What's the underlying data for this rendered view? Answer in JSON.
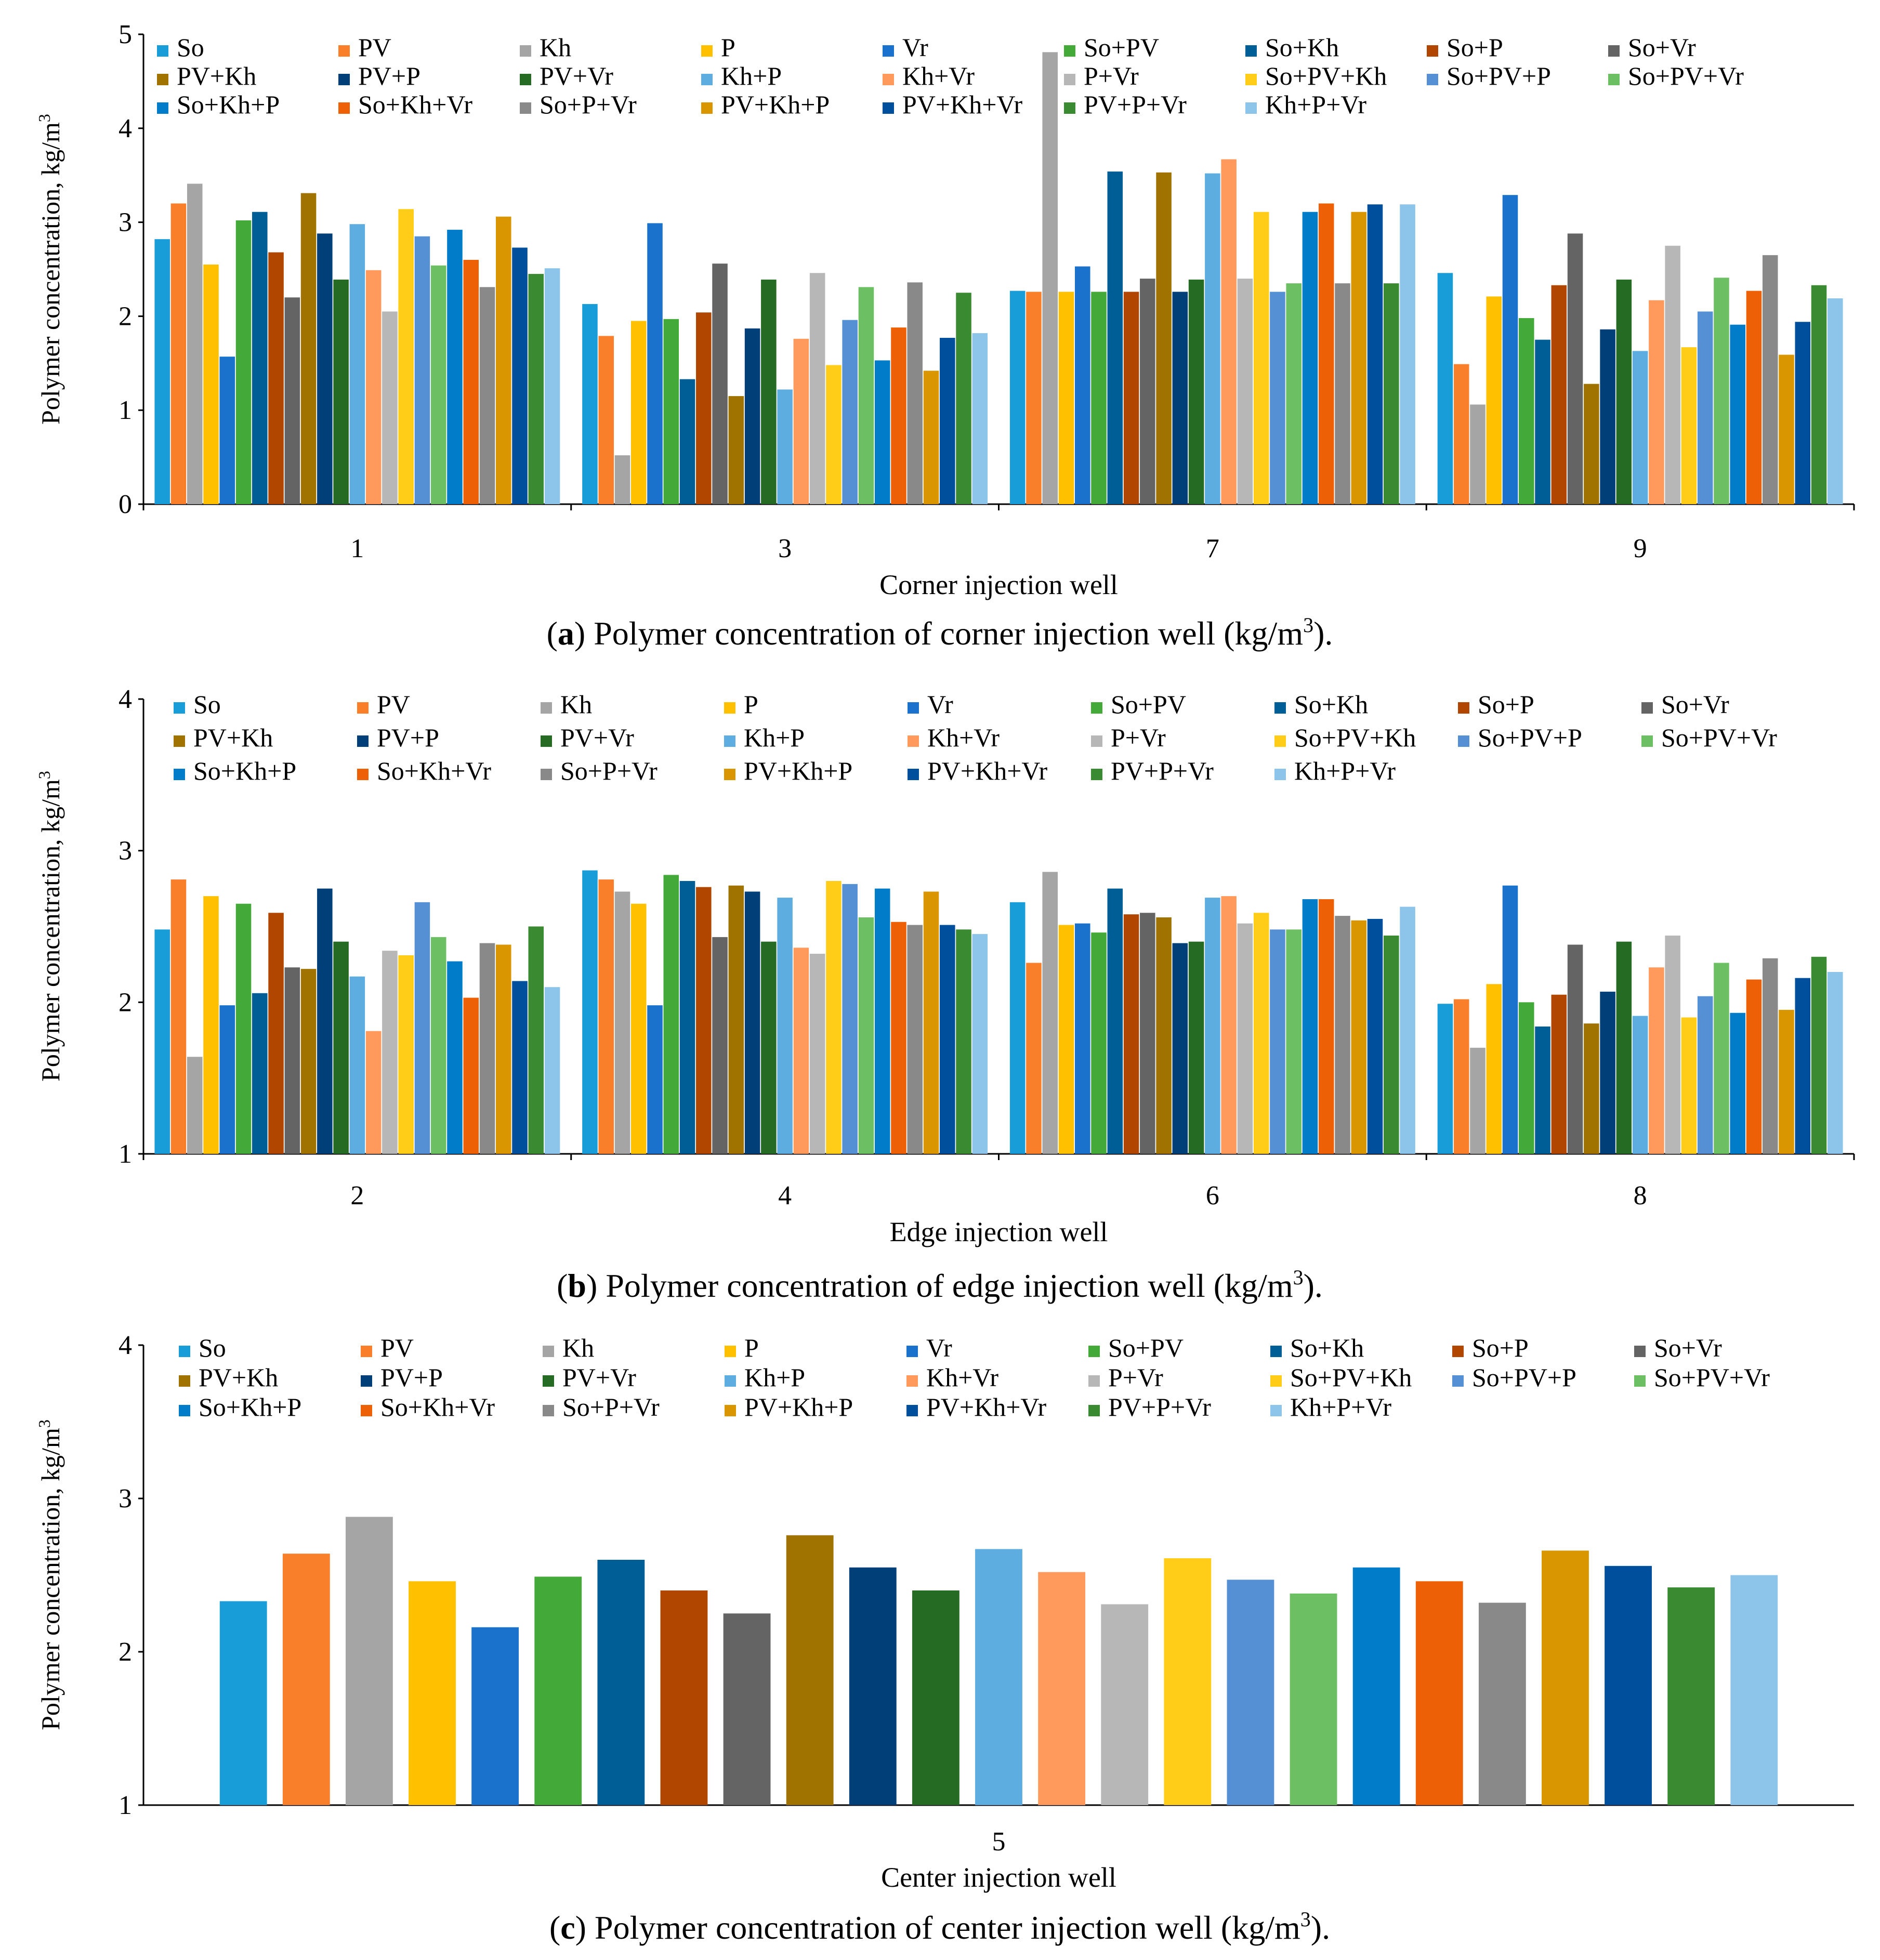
{
  "series_names": [
    "So",
    "PV",
    "Kh",
    "P",
    "Vr",
    "So+PV",
    "So+Kh",
    "So+P",
    "So+Vr",
    "PV+Kh",
    "PV+P",
    "PV+Vr",
    "Kh+P",
    "Kh+Vr",
    "P+Vr",
    "So+PV+Kh",
    "So+PV+P",
    "So+PV+Vr",
    "So+Kh+P",
    "So+Kh+Vr",
    "So+P+Vr",
    "PV+Kh+P",
    "PV+Kh+Vr",
    "PV+P+Vr",
    "Kh+P+Vr"
  ],
  "colors": [
    "#199DD8",
    "#F97F2A",
    "#A5A5A5",
    "#FFC000",
    "#1A72CC",
    "#43A939",
    "#005E96",
    "#B14600",
    "#646464",
    "#A07300",
    "#003F78",
    "#256B23",
    "#5DADE0",
    "#FF9A5C",
    "#B7B7B7",
    "#FFCD17",
    "#5590D4",
    "#6CC063",
    "#007CC9",
    "#EE6005",
    "#898989",
    "#D99600",
    "#004F9D",
    "#3A8A32",
    "#8DC4EA"
  ],
  "chart_data": [
    {
      "type": "bar",
      "title": "(a) Polymer concentration of corner injection well (kg/m3).",
      "caption_letter": "a",
      "caption_text": " Polymer concentration of corner injection well (kg/m",
      "caption_unit_tail": ").",
      "xlabel": "Corner injection well",
      "ylabel": "Polymer concentration, kg/m",
      "ylim": [
        0,
        5
      ],
      "yticks": [
        "0",
        "1",
        "2",
        "3",
        "4",
        "5"
      ],
      "legend": "top",
      "categories": [
        "1",
        "3",
        "7",
        "9"
      ],
      "series": [
        {
          "name": "So",
          "values": [
            2.82,
            2.13,
            2.27,
            2.46
          ]
        },
        {
          "name": "PV",
          "values": [
            3.2,
            1.79,
            2.26,
            1.49
          ]
        },
        {
          "name": "Kh",
          "values": [
            3.41,
            0.52,
            4.81,
            1.06
          ]
        },
        {
          "name": "P",
          "values": [
            2.55,
            1.95,
            2.26,
            2.21
          ]
        },
        {
          "name": "Vr",
          "values": [
            1.57,
            2.99,
            2.53,
            3.29
          ]
        },
        {
          "name": "So+PV",
          "values": [
            3.02,
            1.97,
            2.26,
            1.98
          ]
        },
        {
          "name": "So+Kh",
          "values": [
            3.11,
            1.33,
            3.54,
            1.75
          ]
        },
        {
          "name": "So+P",
          "values": [
            2.68,
            2.04,
            2.26,
            2.33
          ]
        },
        {
          "name": "So+Vr",
          "values": [
            2.2,
            2.56,
            2.4,
            2.88
          ]
        },
        {
          "name": "PV+Kh",
          "values": [
            3.31,
            1.15,
            3.53,
            1.28
          ]
        },
        {
          "name": "PV+P",
          "values": [
            2.88,
            1.87,
            2.26,
            1.86
          ]
        },
        {
          "name": "PV+Vr",
          "values": [
            2.39,
            2.39,
            2.39,
            2.39
          ]
        },
        {
          "name": "Kh+P",
          "values": [
            2.98,
            1.22,
            3.52,
            1.63
          ]
        },
        {
          "name": "Kh+Vr",
          "values": [
            2.49,
            1.76,
            3.67,
            2.17
          ]
        },
        {
          "name": "P+Vr",
          "values": [
            2.05,
            2.46,
            2.4,
            2.75
          ]
        },
        {
          "name": "So+PV+Kh",
          "values": [
            3.14,
            1.48,
            3.11,
            1.67
          ]
        },
        {
          "name": "So+PV+P",
          "values": [
            2.85,
            1.96,
            2.26,
            2.05
          ]
        },
        {
          "name": "So+PV+Vr",
          "values": [
            2.54,
            2.31,
            2.35,
            2.41
          ]
        },
        {
          "name": "So+Kh+P",
          "values": [
            2.92,
            1.53,
            3.11,
            1.91
          ]
        },
        {
          "name": "So+Kh+Vr",
          "values": [
            2.6,
            1.88,
            3.2,
            2.27
          ]
        },
        {
          "name": "So+P+Vr",
          "values": [
            2.31,
            2.36,
            2.35,
            2.65
          ]
        },
        {
          "name": "PV+Kh+P",
          "values": [
            3.06,
            1.42,
            3.11,
            1.59
          ]
        },
        {
          "name": "PV+Kh+Vr",
          "values": [
            2.73,
            1.77,
            3.19,
            1.94
          ]
        },
        {
          "name": "PV+P+Vr",
          "values": [
            2.45,
            2.25,
            2.35,
            2.33
          ]
        },
        {
          "name": "Kh+P+Vr",
          "values": [
            2.51,
            1.82,
            3.19,
            2.19
          ]
        }
      ]
    },
    {
      "type": "bar",
      "title": "(b) Polymer concentration of edge injection well (kg/m3).",
      "caption_letter": "b",
      "caption_text": " Polymer concentration of edge injection well (kg/m",
      "caption_unit_tail": ").",
      "xlabel": "Edge injection well",
      "ylabel": "Polymer concentration, kg/m",
      "ylim": [
        1,
        4
      ],
      "yticks": [
        "1",
        "2",
        "3",
        "4"
      ],
      "legend": "top",
      "categories": [
        "2",
        "4",
        "6",
        "8"
      ],
      "series": [
        {
          "name": "So",
          "values": [
            2.48,
            2.87,
            2.66,
            1.99
          ]
        },
        {
          "name": "PV",
          "values": [
            2.81,
            2.81,
            2.26,
            2.02
          ]
        },
        {
          "name": "Kh",
          "values": [
            1.64,
            2.73,
            2.86,
            1.7
          ]
        },
        {
          "name": "P",
          "values": [
            2.7,
            2.65,
            2.51,
            2.12
          ]
        },
        {
          "name": "Vr",
          "values": [
            1.98,
            1.98,
            2.52,
            2.77
          ]
        },
        {
          "name": "So+PV",
          "values": [
            2.65,
            2.84,
            2.46,
            2.0
          ]
        },
        {
          "name": "So+Kh",
          "values": [
            2.06,
            2.8,
            2.75,
            1.84
          ]
        },
        {
          "name": "So+P",
          "values": [
            2.59,
            2.76,
            2.58,
            2.05
          ]
        },
        {
          "name": "So+Vr",
          "values": [
            2.23,
            2.43,
            2.59,
            2.38
          ]
        },
        {
          "name": "PV+Kh",
          "values": [
            2.22,
            2.77,
            2.56,
            1.86
          ]
        },
        {
          "name": "PV+P",
          "values": [
            2.75,
            2.73,
            2.39,
            2.07
          ]
        },
        {
          "name": "PV+Vr",
          "values": [
            2.4,
            2.4,
            2.4,
            2.4
          ]
        },
        {
          "name": "Kh+P",
          "values": [
            2.17,
            2.69,
            2.69,
            1.91
          ]
        },
        {
          "name": "Kh+Vr",
          "values": [
            1.81,
            2.36,
            2.7,
            2.23
          ]
        },
        {
          "name": "P+Vr",
          "values": [
            2.34,
            2.32,
            2.52,
            2.44
          ]
        },
        {
          "name": "So+PV+Kh",
          "values": [
            2.31,
            2.8,
            2.59,
            1.9
          ]
        },
        {
          "name": "So+PV+P",
          "values": [
            2.66,
            2.78,
            2.48,
            2.04
          ]
        },
        {
          "name": "So+PV+Vr",
          "values": [
            2.43,
            2.56,
            2.48,
            2.26
          ]
        },
        {
          "name": "So+Kh+P",
          "values": [
            2.27,
            2.75,
            2.68,
            1.93
          ]
        },
        {
          "name": "So+Kh+Vr",
          "values": [
            2.03,
            2.53,
            2.68,
            2.15
          ]
        },
        {
          "name": "So+P+Vr",
          "values": [
            2.39,
            2.51,
            2.57,
            2.29
          ]
        },
        {
          "name": "PV+Kh+P",
          "values": [
            2.38,
            2.73,
            2.54,
            1.95
          ]
        },
        {
          "name": "PV+Kh+Vr",
          "values": [
            2.14,
            2.51,
            2.55,
            2.16
          ]
        },
        {
          "name": "PV+P+Vr",
          "values": [
            2.5,
            2.48,
            2.44,
            2.3
          ]
        },
        {
          "name": "Kh+P+Vr",
          "values": [
            2.1,
            2.45,
            2.63,
            2.2
          ]
        }
      ]
    },
    {
      "type": "bar",
      "title": "(c) Polymer concentration of center injection well (kg/m3).",
      "caption_letter": "c",
      "caption_text": " Polymer concentration of center injection well (kg/m",
      "caption_unit_tail": ").",
      "xlabel": "Center injection well",
      "ylabel": "Polymer concentration, kg/m",
      "ylim": [
        1,
        4
      ],
      "yticks": [
        "1",
        "2",
        "3",
        "4"
      ],
      "legend": "top",
      "categories": [
        "5"
      ],
      "series": [
        {
          "name": "So",
          "values": [
            2.33
          ]
        },
        {
          "name": "PV",
          "values": [
            2.64
          ]
        },
        {
          "name": "Kh",
          "values": [
            2.88
          ]
        },
        {
          "name": "P",
          "values": [
            2.46
          ]
        },
        {
          "name": "Vr",
          "values": [
            2.16
          ]
        },
        {
          "name": "So+PV",
          "values": [
            2.49
          ]
        },
        {
          "name": "So+Kh",
          "values": [
            2.6
          ]
        },
        {
          "name": "So+P",
          "values": [
            2.4
          ]
        },
        {
          "name": "So+Vr",
          "values": [
            2.25
          ]
        },
        {
          "name": "PV+Kh",
          "values": [
            2.76
          ]
        },
        {
          "name": "PV+P",
          "values": [
            2.55
          ]
        },
        {
          "name": "PV+Vr",
          "values": [
            2.4
          ]
        },
        {
          "name": "Kh+P",
          "values": [
            2.67
          ]
        },
        {
          "name": "Kh+Vr",
          "values": [
            2.52
          ]
        },
        {
          "name": "P+Vr",
          "values": [
            2.31
          ]
        },
        {
          "name": "So+PV+Kh",
          "values": [
            2.61
          ]
        },
        {
          "name": "So+PV+P",
          "values": [
            2.47
          ]
        },
        {
          "name": "So+PV+Vr",
          "values": [
            2.38
          ]
        },
        {
          "name": "So+Kh+P",
          "values": [
            2.55
          ]
        },
        {
          "name": "So+Kh+Vr",
          "values": [
            2.46
          ]
        },
        {
          "name": "So+P+Vr",
          "values": [
            2.32
          ]
        },
        {
          "name": "PV+Kh+P",
          "values": [
            2.66
          ]
        },
        {
          "name": "PV+Kh+Vr",
          "values": [
            2.56
          ]
        },
        {
          "name": "PV+P+Vr",
          "values": [
            2.42
          ]
        },
        {
          "name": "Kh+P+Vr",
          "values": [
            2.5
          ]
        }
      ]
    }
  ]
}
